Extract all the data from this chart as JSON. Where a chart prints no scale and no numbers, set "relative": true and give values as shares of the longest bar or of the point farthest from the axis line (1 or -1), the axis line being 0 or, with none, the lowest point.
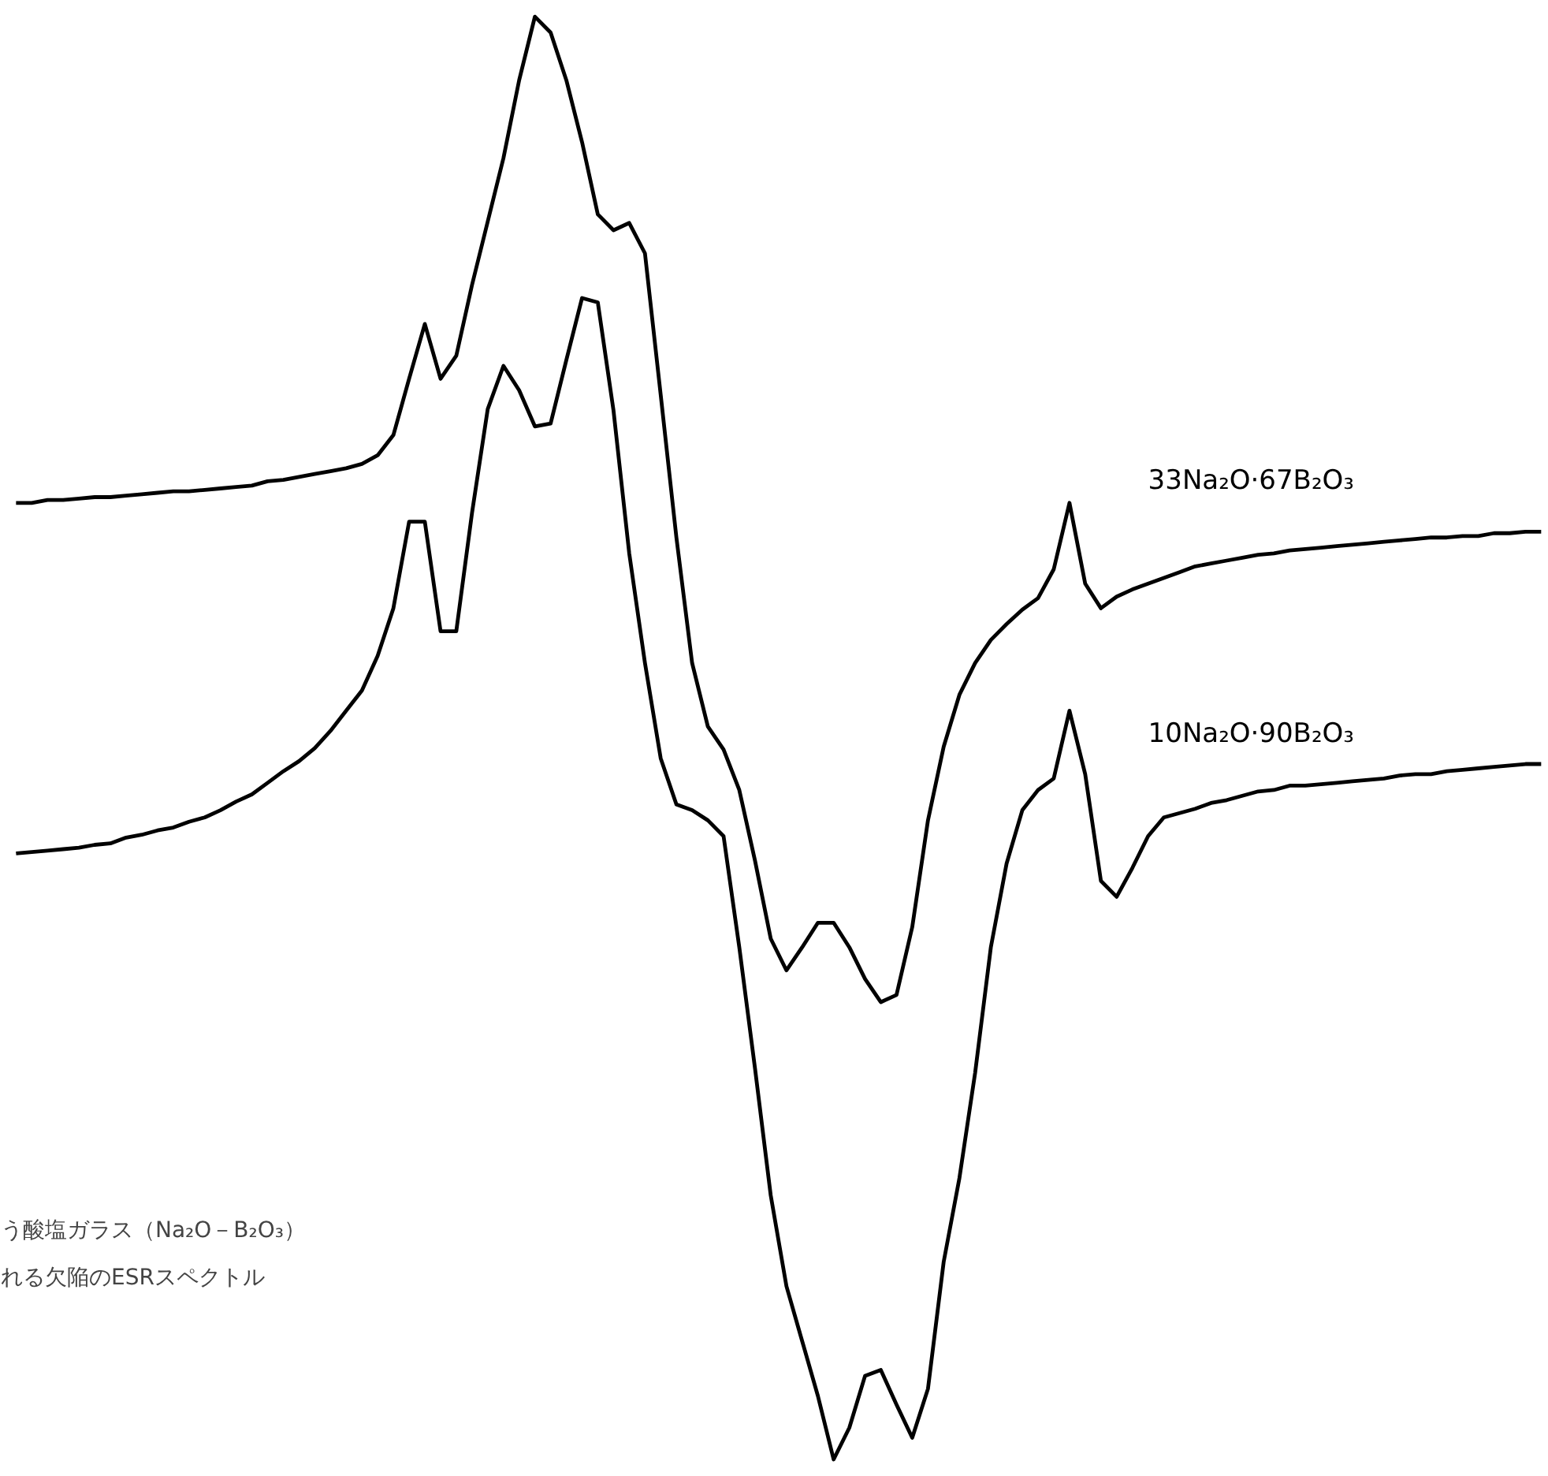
{
  "chart_data": {
    "type": "line",
    "relative": true,
    "line_style": "solid",
    "annotations": [
      "う酸塩ガラス（Na₂O－B₂O₃）",
      "れる欠陥のESRスペクトル"
    ],
    "categories": [
      null,
      null,
      null,
      null,
      null,
      null,
      null,
      null,
      null,
      null,
      null,
      null,
      null,
      null,
      null,
      null,
      null,
      null,
      null,
      null,
      null,
      null,
      null,
      null,
      null,
      null,
      null,
      null,
      null,
      null,
      null,
      null,
      null,
      null,
      null,
      null,
      null,
      null,
      null,
      null,
      null,
      null,
      null,
      null,
      null,
      null,
      null,
      null,
      null,
      null,
      null,
      null,
      null,
      null,
      null,
      null,
      null,
      null,
      null,
      null,
      null,
      null,
      null,
      null,
      null,
      null,
      null,
      null,
      null,
      null,
      null,
      null,
      null,
      null,
      null,
      null,
      null,
      null,
      null,
      null,
      null,
      null,
      null,
      null,
      null,
      null,
      null,
      null,
      null,
      null,
      null,
      null,
      null,
      null,
      null,
      null,
      null,
      null
    ],
    "series": [
      {
        "name": "33Na₂O·67B₂O₃",
        "color": "#000000",
        "values": [
          0.663,
          0.663,
          0.665,
          0.665,
          0.666,
          0.667,
          0.667,
          0.668,
          0.669,
          0.67,
          0.671,
          0.671,
          0.672,
          0.673,
          0.674,
          0.675,
          0.678,
          0.679,
          0.681,
          0.683,
          0.685,
          0.687,
          0.69,
          0.696,
          0.71,
          0.749,
          0.787,
          0.749,
          0.765,
          0.814,
          0.858,
          0.902,
          0.956,
          1.0,
          0.989,
          0.956,
          0.913,
          0.863,
          0.852,
          0.857,
          0.836,
          0.738,
          0.639,
          0.552,
          0.508,
          0.492,
          0.464,
          0.415,
          0.361,
          0.339,
          0.355,
          0.372,
          0.372,
          0.355,
          0.333,
          0.317,
          0.322,
          0.369,
          0.443,
          0.494,
          0.53,
          0.552,
          0.568,
          0.579,
          0.589,
          0.597,
          0.617,
          0.663,
          0.607,
          0.59,
          0.598,
          0.603,
          0.607,
          0.611,
          0.615,
          0.619,
          0.621,
          0.623,
          0.625,
          0.627,
          0.628,
          0.63,
          0.631,
          0.632,
          0.633,
          0.634,
          0.635,
          0.636,
          0.637,
          0.638,
          0.639,
          0.639,
          0.64,
          0.64,
          0.642,
          0.642,
          0.643,
          0.643
        ]
      },
      {
        "name": "10Na₂O·90B₂O₃",
        "color": "#000000",
        "values": [
          0.42,
          0.421,
          0.422,
          0.423,
          0.424,
          0.426,
          0.427,
          0.431,
          0.433,
          0.436,
          0.438,
          0.442,
          0.445,
          0.45,
          0.456,
          0.461,
          0.469,
          0.477,
          0.484,
          0.493,
          0.505,
          0.519,
          0.533,
          0.557,
          0.59,
          0.65,
          0.65,
          0.574,
          0.574,
          0.656,
          0.728,
          0.758,
          0.741,
          0.716,
          0.718,
          0.762,
          0.805,
          0.802,
          0.727,
          0.628,
          0.552,
          0.486,
          0.454,
          0.45,
          0.443,
          0.432,
          0.355,
          0.271,
          0.183,
          0.12,
          0.082,
          0.044,
          0.0,
          0.022,
          0.058,
          0.062,
          0.038,
          0.015,
          0.049,
          0.137,
          0.195,
          0.268,
          0.355,
          0.413,
          0.45,
          0.464,
          0.472,
          0.519,
          0.475,
          0.401,
          0.39,
          0.41,
          0.432,
          0.445,
          0.448,
          0.451,
          0.455,
          0.457,
          0.46,
          0.463,
          0.464,
          0.467,
          0.467,
          0.468,
          0.469,
          0.47,
          0.471,
          0.472,
          0.474,
          0.475,
          0.475,
          0.477,
          0.478,
          0.479,
          0.48,
          0.481,
          0.482,
          0.482
        ]
      }
    ]
  }
}
